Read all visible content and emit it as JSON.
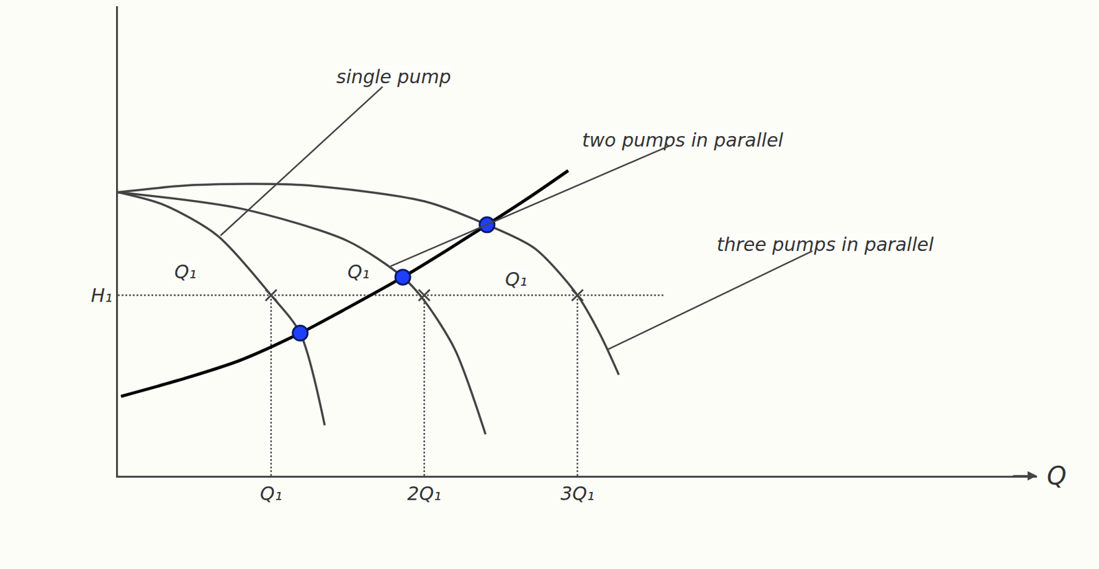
{
  "chart_data": {
    "type": "line",
    "x_label": "Q",
    "xlim": [
      0,
      6
    ],
    "ylim": [
      0,
      2.6
    ],
    "xticks": [
      {
        "value": 1,
        "label": "Q₁"
      },
      {
        "value": 2,
        "label": "2Q₁"
      },
      {
        "value": 3,
        "label": "3Q₁"
      }
    ],
    "yticks": [
      {
        "value": 1,
        "label": "H₁"
      }
    ],
    "grid": false,
    "series": [
      {
        "name": "single pump",
        "color": "#444444",
        "line_style": "solid",
        "x": [
          0,
          0.3,
          0.65,
          1.0,
          1.19,
          1.35
        ],
        "values": [
          1.57,
          1.5,
          1.33,
          1.0,
          0.79,
          0.28
        ]
      },
      {
        "name": "two pumps in parallel",
        "color": "#444444",
        "line_style": "solid",
        "x": [
          0,
          0.8,
          1.5,
          1.86,
          2.0,
          2.2,
          2.4
        ],
        "values": [
          1.57,
          1.48,
          1.3,
          1.1,
          0.97,
          0.7,
          0.23
        ]
      },
      {
        "name": "three pumps in parallel",
        "color": "#444444",
        "line_style": "solid",
        "x": [
          0,
          0.5,
          1.2,
          2.0,
          2.41,
          2.72,
          3.0,
          3.15,
          3.27
        ],
        "values": [
          1.57,
          1.61,
          1.61,
          1.52,
          1.39,
          1.26,
          1.0,
          0.78,
          0.56
        ]
      },
      {
        "color": "#000000",
        "line_style": "solid",
        "x": [
          0.02,
          0.44,
          0.8,
          1.19,
          1.5,
          1.86,
          2.15,
          2.41,
          2.7,
          2.94
        ],
        "values": [
          0.44,
          0.54,
          0.64,
          0.79,
          0.93,
          1.1,
          1.25,
          1.39,
          1.55,
          1.69
        ]
      }
    ],
    "operating_points": {
      "x": [
        1.19,
        1.86,
        2.41
      ],
      "y": [
        0.79,
        1.1,
        1.39
      ],
      "color": "#1f3fff",
      "marker": "circle"
    },
    "points": {
      "x": [
        1,
        2,
        3
      ],
      "y": [
        1,
        1,
        1
      ],
      "color": "#444444",
      "marker": "x"
    },
    "guides": [
      {
        "x": [
          0,
          3.57
        ],
        "y": [
          1,
          1
        ]
      },
      {
        "x": [
          1,
          1
        ],
        "y": [
          0,
          1
        ]
      },
      {
        "x": [
          2,
          2
        ],
        "y": [
          0,
          1
        ]
      },
      {
        "x": [
          3,
          3
        ],
        "y": [
          0,
          1
        ]
      }
    ],
    "annotations": [
      {
        "text": "single pump",
        "x": 1.8,
        "y": 2.21,
        "point_to": [
          0.67,
          1.33
        ]
      },
      {
        "text": "two pumps in parallel",
        "x": 3.69,
        "y": 1.86,
        "point_to": [
          1.78,
          1.16
        ]
      },
      {
        "text": "three pumps in parallel",
        "x": 4.62,
        "y": 1.28,
        "point_to": [
          3.2,
          0.7
        ]
      },
      {
        "text": "Q₁",
        "x": 0.44,
        "y": 1.13
      },
      {
        "text": "Q₁",
        "x": 1.57,
        "y": 1.13
      },
      {
        "text": "Q₁",
        "x": 2.6,
        "y": 1.09
      }
    ]
  }
}
